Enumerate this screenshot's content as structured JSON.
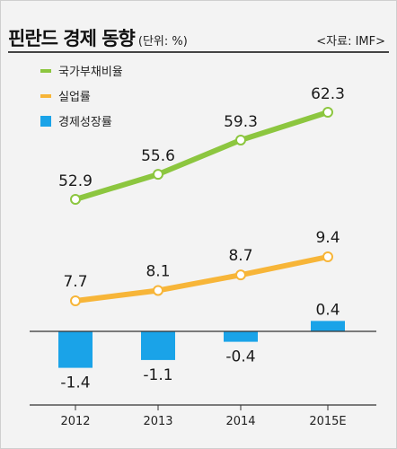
{
  "header": {
    "title": "핀란드 경제 동향",
    "unit": "(단위: %)",
    "source": "<자료: IMF>"
  },
  "chart_data": {
    "type": "line+bar",
    "categories": [
      "2012",
      "2013",
      "2014",
      "2015E"
    ],
    "series": [
      {
        "name": "국가부채비율",
        "type": "line",
        "color": "#8cc63f",
        "values": [
          52.9,
          55.6,
          59.3,
          62.3
        ]
      },
      {
        "name": "실업률",
        "type": "line",
        "color": "#f7b538",
        "values": [
          7.7,
          8.1,
          8.7,
          9.4
        ]
      },
      {
        "name": "경제성장률",
        "type": "bar",
        "color": "#1aa3e8",
        "values": [
          -1.4,
          -1.1,
          -0.4,
          0.4
        ]
      }
    ],
    "value_labels": {
      "국가부채비율": [
        "52.9",
        "55.6",
        "59.3",
        "62.3"
      ],
      "실업률": [
        "7.7",
        "8.1",
        "8.7",
        "9.4"
      ],
      "경제성장률": [
        "-1.4",
        "-1.1",
        "-0.4",
        "0.4"
      ]
    },
    "legend_position": "top-left",
    "grid": false
  }
}
